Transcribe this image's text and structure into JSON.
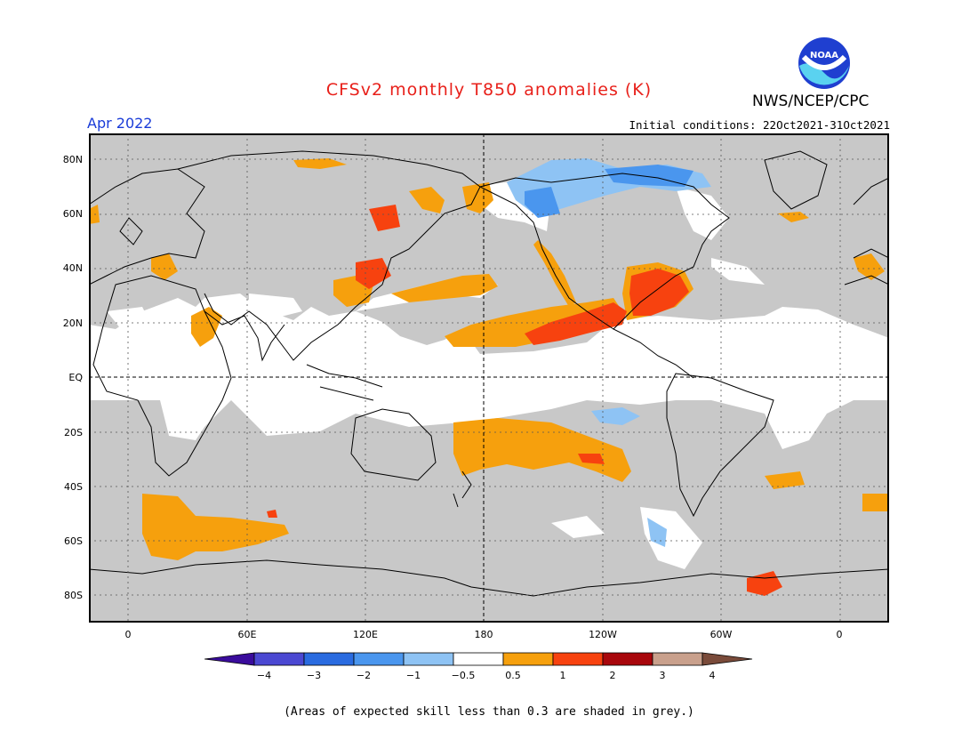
{
  "title": "CFSv2 monthly T850 anomalies (K)",
  "agency": "NWS/NCEP/CPC",
  "logo_text": "NOAA",
  "period": "Apr 2022",
  "initial_conditions": "Initial conditions: 22Oct2021-31Oct2021",
  "footnote": "(Areas of expected skill less than 0.3 are shaded in grey.)",
  "lat_labels": [
    "80N",
    "60N",
    "40N",
    "20N",
    "EQ",
    "20S",
    "40S",
    "60S",
    "80S"
  ],
  "lon_labels": [
    "0",
    "60E",
    "120E",
    "180",
    "120W",
    "60W",
    "0"
  ],
  "colorbar": {
    "labels": [
      "−4",
      "−3",
      "−2",
      "−1",
      "−0.5",
      "0.5",
      "1",
      "2",
      "3",
      "4"
    ],
    "colors": [
      "#3a0c9c",
      "#4b48d2",
      "#2a6be0",
      "#4a96ee",
      "#8ec3f4",
      "#ffffff",
      "#f6a00d",
      "#f7420f",
      "#a8070c",
      "#c9a08c",
      "#7a4b3a"
    ]
  },
  "colors": {
    "title": "#e8201a",
    "period": "#1a3cd8",
    "low_skill_grey": "#c8c8c8",
    "anomaly_0_5_to_1": "#f6a00d",
    "anomaly_1_to_2": "#f7420f",
    "anomaly_2_to_3": "#a8070c",
    "anomaly_neg_0_5_to_1": "#8ec3f4",
    "anomaly_neg_1_to_2": "#4a96ee"
  }
}
